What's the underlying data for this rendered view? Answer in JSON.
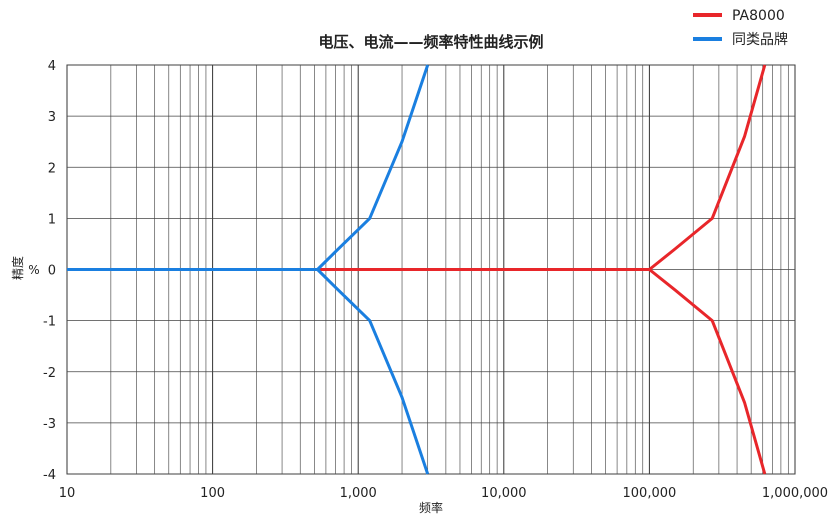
{
  "chart_data": {
    "type": "line",
    "title": "电压、电流——频率特性曲线示例",
    "xlabel": "频率",
    "ylabel": "精度",
    "yunit": "%",
    "xscale": "log",
    "xlim": [
      10,
      1000000
    ],
    "xticks": [
      10,
      100,
      {
        "value": 1000,
        "label": "1,000"
      },
      {
        "value": 10000,
        "label": "10,000"
      },
      {
        "value": 100000,
        "label": "100,000"
      },
      {
        "value": 1000000,
        "label": "1,000,000"
      }
    ],
    "ylim": [
      -4,
      4
    ],
    "yticks": [
      -4,
      -3,
      -2,
      -1,
      0,
      1,
      2,
      3,
      4
    ],
    "grid": true,
    "legend": "top-right",
    "series": [
      {
        "name": "PA8000",
        "color": "#e8262a",
        "x": [
          10,
          100000,
          150000,
          270000,
          450000,
          620000
        ],
        "values": [
          0,
          0,
          0.4,
          1,
          2.6,
          4
        ],
        "lower": [
          0,
          0,
          -0.4,
          -1,
          -2.6,
          -4
        ]
      },
      {
        "name": "同类品牌",
        "color": "#1a7fe0",
        "x": [
          10,
          525,
          700,
          1200,
          2000,
          3000
        ],
        "values": [
          0,
          0,
          0.35,
          1,
          2.5,
          4
        ],
        "lower": [
          0,
          0,
          -0.35,
          -1,
          -2.5,
          -4
        ]
      }
    ]
  }
}
